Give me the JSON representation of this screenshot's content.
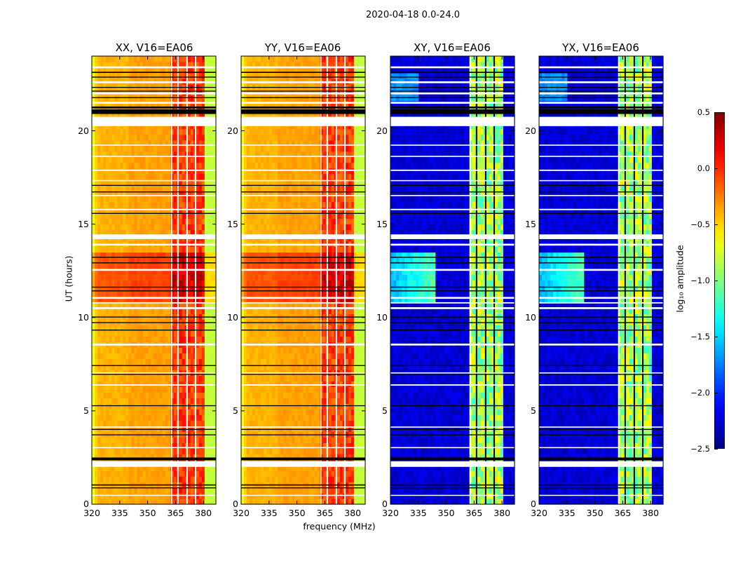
{
  "figure": {
    "suptitle": "2020-04-18 0.0-24.0",
    "ylabel": "UT (hours)",
    "xlabel": "frequency (MHz)",
    "colorbar_label": "log₁₀ amplitude"
  },
  "chart_data": {
    "type": "heatmap",
    "colormap": "jet",
    "clim": [
      -2.5,
      0.5
    ],
    "colorbar_ticks": [
      "0.5",
      "0.0",
      "−0.5",
      "−1.0",
      "−1.5",
      "−2.0",
      "−2.5"
    ],
    "colorbar_tick_values": [
      0.5,
      0.0,
      -0.5,
      -1.0,
      -1.5,
      -2.0,
      -2.5
    ],
    "xlim": [
      320,
      386.7
    ],
    "ylim": [
      0,
      24
    ],
    "xticks": [
      "320",
      "335",
      "350",
      "365",
      "380"
    ],
    "xtick_values": [
      320,
      335,
      350,
      365,
      380
    ],
    "yticks": [
      "0",
      "5",
      "10",
      "15",
      "20"
    ],
    "ytick_values": [
      0,
      5,
      10,
      15,
      20
    ],
    "rfi_band_MHz": [
      363,
      380.5
    ],
    "band_gaps_MHz": [
      366.3,
      371.2,
      375.8
    ],
    "enhanced_time_h": [
      10.9,
      13.6
    ],
    "flagged_white_h": [
      [
        23.35,
        23.45
      ],
      [
        22.55,
        22.65
      ],
      [
        21.95,
        22.05
      ],
      [
        21.45,
        21.55
      ],
      [
        20.25,
        20.75
      ],
      [
        19.2,
        19.26
      ],
      [
        18.6,
        18.66
      ],
      [
        17.85,
        17.92
      ],
      [
        17.3,
        17.36
      ],
      [
        16.5,
        16.56
      ],
      [
        15.75,
        15.82
      ],
      [
        14.2,
        14.45
      ],
      [
        13.85,
        13.95
      ],
      [
        12.5,
        12.6
      ],
      [
        11.0,
        11.1
      ],
      [
        10.75,
        10.82
      ],
      [
        10.45,
        10.55
      ],
      [
        8.5,
        8.6
      ],
      [
        7.0,
        7.06
      ],
      [
        6.35,
        6.42
      ],
      [
        4.1,
        4.16
      ],
      [
        3.0,
        3.06
      ],
      [
        2.0,
        2.3
      ],
      [
        0.45,
        0.5
      ]
    ],
    "flagged_black_h": [
      [
        23.1,
        23.16
      ],
      [
        22.85,
        22.9
      ],
      [
        22.3,
        22.35
      ],
      [
        22.1,
        22.15
      ],
      [
        21.75,
        21.8
      ],
      [
        21.2,
        21.3
      ],
      [
        20.9,
        21.15
      ],
      [
        17.05,
        17.1
      ],
      [
        16.7,
        16.75
      ],
      [
        15.55,
        15.6
      ],
      [
        13.2,
        13.25
      ],
      [
        12.9,
        12.95
      ],
      [
        11.6,
        11.65
      ],
      [
        11.4,
        11.45
      ],
      [
        10.0,
        10.05
      ],
      [
        9.7,
        9.75
      ],
      [
        9.3,
        9.35
      ],
      [
        7.4,
        7.45
      ],
      [
        6.95,
        6.98
      ],
      [
        5.25,
        5.3
      ],
      [
        4.0,
        4.03
      ],
      [
        3.7,
        3.74
      ],
      [
        2.35,
        2.5
      ],
      [
        1.0,
        1.06
      ],
      [
        0.85,
        0.9
      ]
    ],
    "panels": [
      {
        "title": "XX, V16=EA06",
        "pol": "parallel",
        "background_log_amp": -0.35,
        "band_log_amp": -0.05,
        "edge_log_amp": -0.75
      },
      {
        "title": "YY, V16=EA06",
        "pol": "parallel",
        "background_log_amp": -0.35,
        "band_log_amp": -0.05,
        "edge_log_amp": -0.75
      },
      {
        "title": "XY, V16=EA06",
        "pol": "cross",
        "background_log_amp": -2.25,
        "band_log_amp": -0.9,
        "edge_log_amp": -2.3
      },
      {
        "title": "YX, V16=EA06",
        "pol": "cross",
        "background_log_amp": -2.25,
        "band_log_amp": -0.9,
        "edge_log_amp": -2.3
      }
    ]
  }
}
